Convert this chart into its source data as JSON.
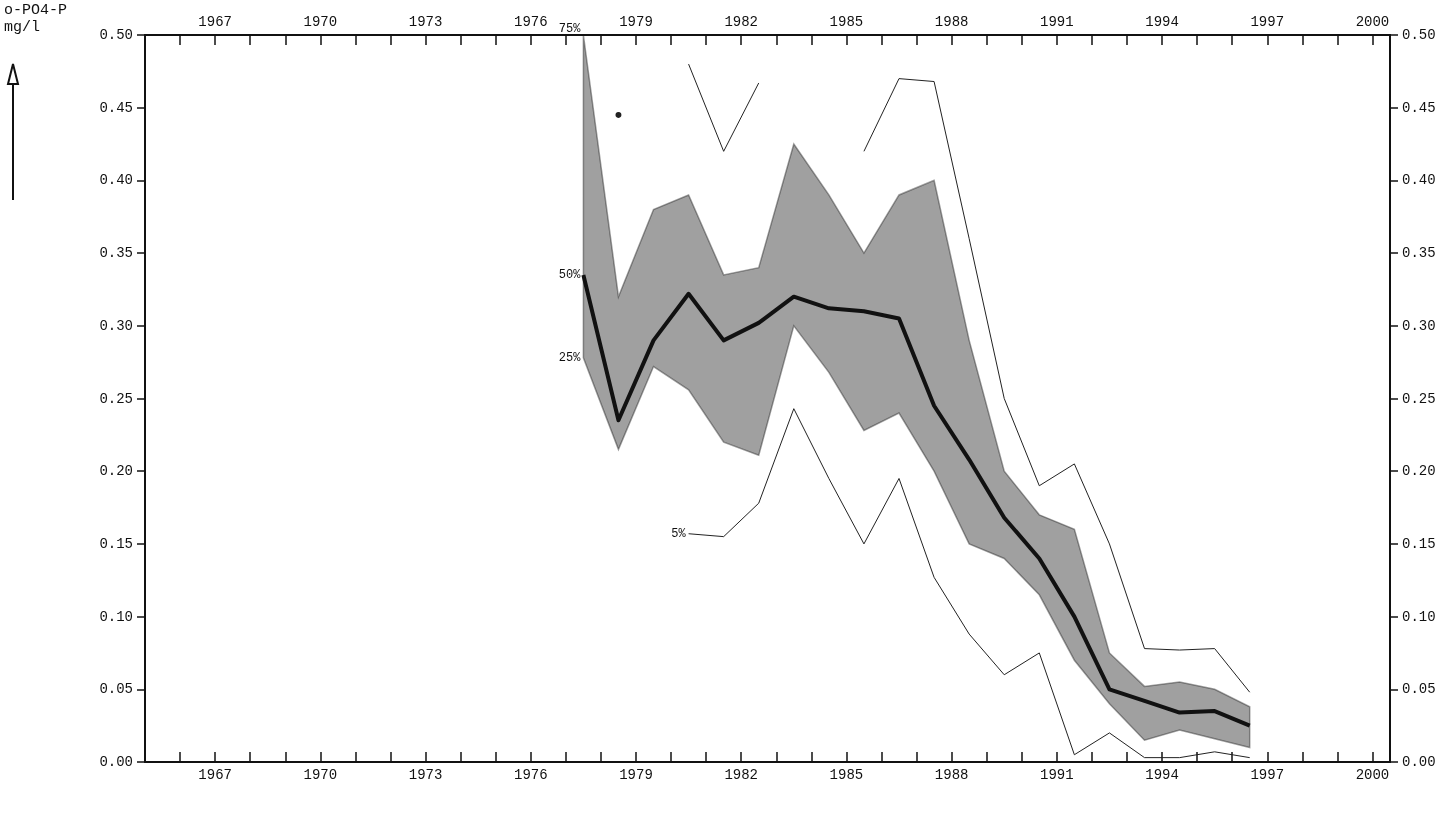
{
  "chart_data": {
    "type": "line",
    "ylabel": "o-PO4-P\nmg/l",
    "x": [
      1977.5,
      1978.5,
      1979.5,
      1980.5,
      1981.5,
      1982.5,
      1983.5,
      1984.5,
      1985.5,
      1986.5,
      1987.5,
      1988.5,
      1989.5,
      1990.5,
      1991.5,
      1992.5,
      1993.5,
      1994.5,
      1995.5,
      1996.5
    ],
    "series": [
      {
        "name": "50%",
        "color": "#111111",
        "values": [
          0.335,
          0.235,
          0.29,
          0.322,
          0.29,
          0.302,
          0.32,
          0.312,
          0.31,
          0.305,
          0.245,
          0.208,
          0.168,
          0.14,
          0.1,
          0.05,
          0.042,
          0.034,
          0.035,
          0.025
        ],
        "lower": [
          0.278,
          0.215,
          0.272,
          0.256,
          0.22,
          0.211,
          0.3,
          0.268,
          0.228,
          0.24,
          0.2,
          0.15,
          0.14,
          0.115,
          0.07,
          0.04,
          0.015,
          0.022,
          0.016,
          0.01
        ],
        "upper": [
          0.5,
          0.32,
          0.38,
          0.39,
          0.335,
          0.34,
          0.425,
          0.39,
          0.35,
          0.39,
          0.4,
          0.29,
          0.2,
          0.17,
          0.16,
          0.075,
          0.052,
          0.055,
          0.05,
          0.038
        ]
      },
      {
        "name": "5%",
        "color": "#222222",
        "values": [
          null,
          null,
          null,
          0.157,
          0.155,
          0.178,
          0.243,
          0.195,
          0.15,
          0.195,
          0.127,
          0.088,
          0.06,
          0.075,
          0.005,
          0.02,
          0.003,
          0.003,
          0.007,
          0.003
        ]
      },
      {
        "color": "#222222",
        "values": [
          null,
          0.445,
          null,
          0.48,
          0.42,
          0.467,
          null,
          null,
          0.42,
          0.47,
          0.468,
          0.36,
          0.25,
          0.19,
          0.205,
          0.15,
          0.078,
          0.077,
          0.078,
          0.048
        ]
      }
    ],
    "annotations": [
      {
        "text": "75%",
        "x": 1977.5,
        "y": 0.5
      },
      {
        "text": "25%",
        "x": 1977.5,
        "y": 0.278
      }
    ],
    "xlim": [
      1965,
      2000.5
    ],
    "xticks": [
      {
        "value": 1966,
        "label": null
      },
      {
        "value": 1967,
        "label": "1967"
      },
      {
        "value": 1968,
        "label": null
      },
      {
        "value": 1969,
        "label": null
      },
      {
        "value": 1970,
        "label": "1970"
      },
      {
        "value": 1971,
        "label": null
      },
      {
        "value": 1972,
        "label": null
      },
      {
        "value": 1973,
        "label": "1973"
      },
      {
        "value": 1974,
        "label": null
      },
      {
        "value": 1975,
        "label": null
      },
      {
        "value": 1976,
        "label": "1976"
      },
      {
        "value": 1977,
        "label": null
      },
      {
        "value": 1978,
        "label": null
      },
      {
        "value": 1979,
        "label": "1979"
      },
      {
        "value": 1980,
        "label": null
      },
      {
        "value": 1981,
        "label": null
      },
      {
        "value": 1982,
        "label": "1982"
      },
      {
        "value": 1983,
        "label": null
      },
      {
        "value": 1984,
        "label": null
      },
      {
        "value": 1985,
        "label": "1985"
      },
      {
        "value": 1986,
        "label": null
      },
      {
        "value": 1987,
        "label": null
      },
      {
        "value": 1988,
        "label": "1988"
      },
      {
        "value": 1989,
        "label": null
      },
      {
        "value": 1990,
        "label": null
      },
      {
        "value": 1991,
        "label": "1991"
      },
      {
        "value": 1992,
        "label": null
      },
      {
        "value": 1993,
        "label": null
      },
      {
        "value": 1994,
        "label": "1994"
      },
      {
        "value": 1995,
        "label": null
      },
      {
        "value": 1996,
        "label": null
      },
      {
        "value": 1997,
        "label": "1997"
      },
      {
        "value": 1998,
        "label": null
      },
      {
        "value": 1999,
        "label": null
      },
      {
        "value": 2000,
        "label": "2000"
      }
    ],
    "x2lim": [
      1965,
      2000.5
    ],
    "x2ticks": [
      {
        "value": 1966,
        "label": null
      },
      {
        "value": 1967,
        "label": "1967"
      },
      {
        "value": 1968,
        "label": null
      },
      {
        "value": 1969,
        "label": null
      },
      {
        "value": 1970,
        "label": "1970"
      },
      {
        "value": 1971,
        "label": null
      },
      {
        "value": 1972,
        "label": null
      },
      {
        "value": 1973,
        "label": "1973"
      },
      {
        "value": 1974,
        "label": null
      },
      {
        "value": 1975,
        "label": null
      },
      {
        "value": 1976,
        "label": "1976"
      },
      {
        "value": 1977,
        "label": null
      },
      {
        "value": 1978,
        "label": null
      },
      {
        "value": 1979,
        "label": "1979"
      },
      {
        "value": 1980,
        "label": null
      },
      {
        "value": 1981,
        "label": null
      },
      {
        "value": 1982,
        "label": "1982"
      },
      {
        "value": 1983,
        "label": null
      },
      {
        "value": 1984,
        "label": null
      },
      {
        "value": 1985,
        "label": "1985"
      },
      {
        "value": 1986,
        "label": null
      },
      {
        "value": 1987,
        "label": null
      },
      {
        "value": 1988,
        "label": "1988"
      },
      {
        "value": 1989,
        "label": null
      },
      {
        "value": 1990,
        "label": null
      },
      {
        "value": 1991,
        "label": "1991"
      },
      {
        "value": 1992,
        "label": null
      },
      {
        "value": 1993,
        "label": null
      },
      {
        "value": 1994,
        "label": "1994"
      },
      {
        "value": 1995,
        "label": null
      },
      {
        "value": 1996,
        "label": null
      },
      {
        "value": 1997,
        "label": "1997"
      },
      {
        "value": 1998,
        "label": null
      },
      {
        "value": 1999,
        "label": null
      },
      {
        "value": 2000,
        "label": "2000"
      }
    ],
    "ylim": [
      0,
      0.5
    ],
    "yticks": [
      {
        "value": 0,
        "label": "0.00"
      },
      {
        "value": 0.05,
        "label": "0.05"
      },
      {
        "value": 0.1,
        "label": "0.10"
      },
      {
        "value": 0.15,
        "label": "0.15"
      },
      {
        "value": 0.2,
        "label": "0.20"
      },
      {
        "value": 0.25,
        "label": "0.25"
      },
      {
        "value": 0.3,
        "label": "0.30"
      },
      {
        "value": 0.35,
        "label": "0.35"
      },
      {
        "value": 0.4,
        "label": "0.40"
      },
      {
        "value": 0.45,
        "label": "0.45"
      },
      {
        "value": 0.5,
        "label": "0.50"
      }
    ],
    "y2lim": [
      0,
      0.5
    ],
    "y2ticks": [
      {
        "value": 0,
        "label": "0.00"
      },
      {
        "value": 0.05,
        "label": "0.05"
      },
      {
        "value": 0.1,
        "label": "0.10"
      },
      {
        "value": 0.15,
        "label": "0.15"
      },
      {
        "value": 0.2,
        "label": "0.20"
      },
      {
        "value": 0.25,
        "label": "0.25"
      },
      {
        "value": 0.3,
        "label": "0.30"
      },
      {
        "value": 0.35,
        "label": "0.35"
      },
      {
        "value": 0.4,
        "label": "0.40"
      },
      {
        "value": 0.45,
        "label": "0.45"
      },
      {
        "value": 0.5,
        "label": "0.50"
      }
    ],
    "marker": "none",
    "legend": false,
    "grid": false
  }
}
